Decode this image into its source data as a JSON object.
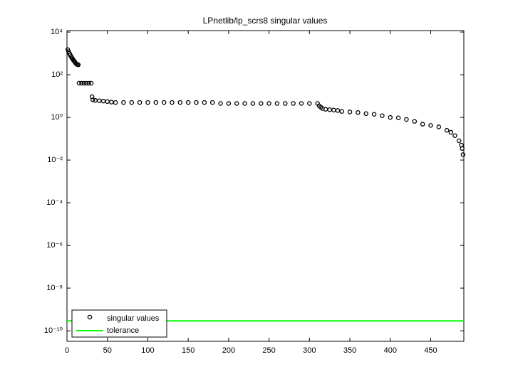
{
  "chart_data": {
    "type": "scatter",
    "title": "LPnetlib/lp_scrs8 singular values",
    "log_y": true,
    "xlim": [
      0,
      491
    ],
    "xticks": [
      0,
      50,
      100,
      150,
      200,
      250,
      300,
      350,
      400,
      450
    ],
    "ylim": [
      3.2e-11,
      11700
    ],
    "yticks": [
      {
        "value": 10000,
        "label": "10⁴"
      },
      {
        "value": 100,
        "label": "10²"
      },
      {
        "value": 1,
        "label": "10⁰"
      },
      {
        "value": 0.01,
        "label": "10⁻²"
      },
      {
        "value": 0.0001,
        "label": "10⁻⁴"
      },
      {
        "value": 1e-06,
        "label": "10⁻⁶"
      },
      {
        "value": 1e-08,
        "label": "10⁻⁸"
      },
      {
        "value": 1e-10,
        "label": "10⁻¹⁰"
      }
    ],
    "legend": "lower-left",
    "series": [
      {
        "name": "singular values",
        "color": "#000000",
        "x": [
          1,
          2,
          3,
          4,
          5,
          6,
          7,
          8,
          9,
          10,
          11,
          12,
          13,
          14,
          15,
          18,
          21,
          24,
          27,
          30,
          31,
          32,
          35,
          40,
          45,
          50,
          55,
          60,
          70,
          80,
          90,
          100,
          110,
          120,
          130,
          140,
          150,
          160,
          170,
          180,
          190,
          200,
          210,
          220,
          230,
          240,
          250,
          260,
          270,
          280,
          290,
          300,
          310,
          312,
          314,
          316,
          320,
          325,
          330,
          335,
          340,
          350,
          360,
          370,
          380,
          390,
          400,
          410,
          420,
          430,
          440,
          450,
          460,
          470,
          475,
          480,
          485,
          488,
          489,
          490
        ],
        "values": [
          1500,
          1200,
          1000,
          850,
          720,
          620,
          550,
          480,
          430,
          380,
          340,
          310,
          300,
          290,
          40,
          40,
          40,
          40,
          40,
          40,
          9.3,
          6.6,
          6.3,
          6,
          5.8,
          5.5,
          5.2,
          5,
          5,
          5,
          5,
          5,
          5,
          5,
          5,
          5,
          5,
          5,
          5,
          5,
          4.5,
          4.5,
          4.5,
          4.5,
          4.5,
          4.5,
          4.5,
          4.5,
          4.5,
          4.5,
          4.5,
          4.5,
          4.5,
          3.5,
          3,
          2.6,
          2.4,
          2.3,
          2.2,
          2.1,
          1.9,
          1.8,
          1.7,
          1.5,
          1.4,
          1.2,
          1,
          0.95,
          0.8,
          0.65,
          0.48,
          0.42,
          0.36,
          0.25,
          0.2,
          0.14,
          0.08,
          0.05,
          0.035,
          0.018
        ]
      },
      {
        "name": "tolerance",
        "color": "#00ff00",
        "values": [
          2.9e-10
        ]
      }
    ]
  }
}
